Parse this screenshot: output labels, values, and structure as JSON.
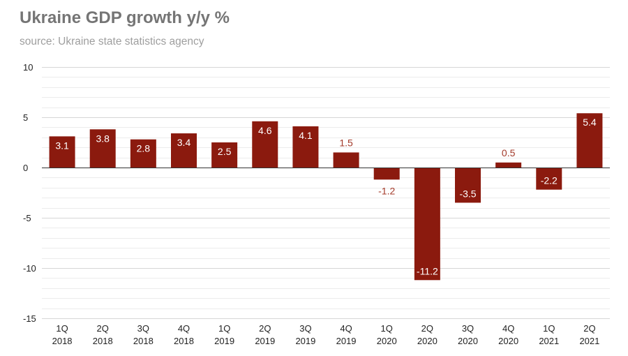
{
  "chart_data": {
    "type": "bar",
    "title": "Ukraine GDP growth y/y %",
    "subtitle": "source: Ukraine state statistics agency",
    "xlabel": "",
    "ylabel": "",
    "categories": [
      [
        "1Q",
        "2018"
      ],
      [
        "2Q",
        "2018"
      ],
      [
        "3Q",
        "2018"
      ],
      [
        "4Q",
        "2018"
      ],
      [
        "1Q",
        "2019"
      ],
      [
        "2Q",
        "2019"
      ],
      [
        "3Q",
        "2019"
      ],
      [
        "4Q",
        "2019"
      ],
      [
        "1Q",
        "2020"
      ],
      [
        "2Q",
        "2020"
      ],
      [
        "3Q",
        "2020"
      ],
      [
        "4Q",
        "2020"
      ],
      [
        "1Q",
        "2021"
      ],
      [
        "2Q",
        "2021"
      ]
    ],
    "values": [
      3.1,
      3.8,
      2.8,
      3.4,
      2.5,
      4.6,
      4.1,
      1.5,
      -1.2,
      -11.2,
      -3.5,
      0.5,
      -2.2,
      5.4
    ],
    "ylim": [
      -15,
      10
    ],
    "yticks": [
      10,
      5,
      0,
      -5,
      -10,
      -15
    ],
    "minor_gridlines": true,
    "legend": "none",
    "bar_color": "#8b1a0e",
    "label_color_inside": "#ffffff",
    "label_color_outside": "#a33a2a"
  }
}
